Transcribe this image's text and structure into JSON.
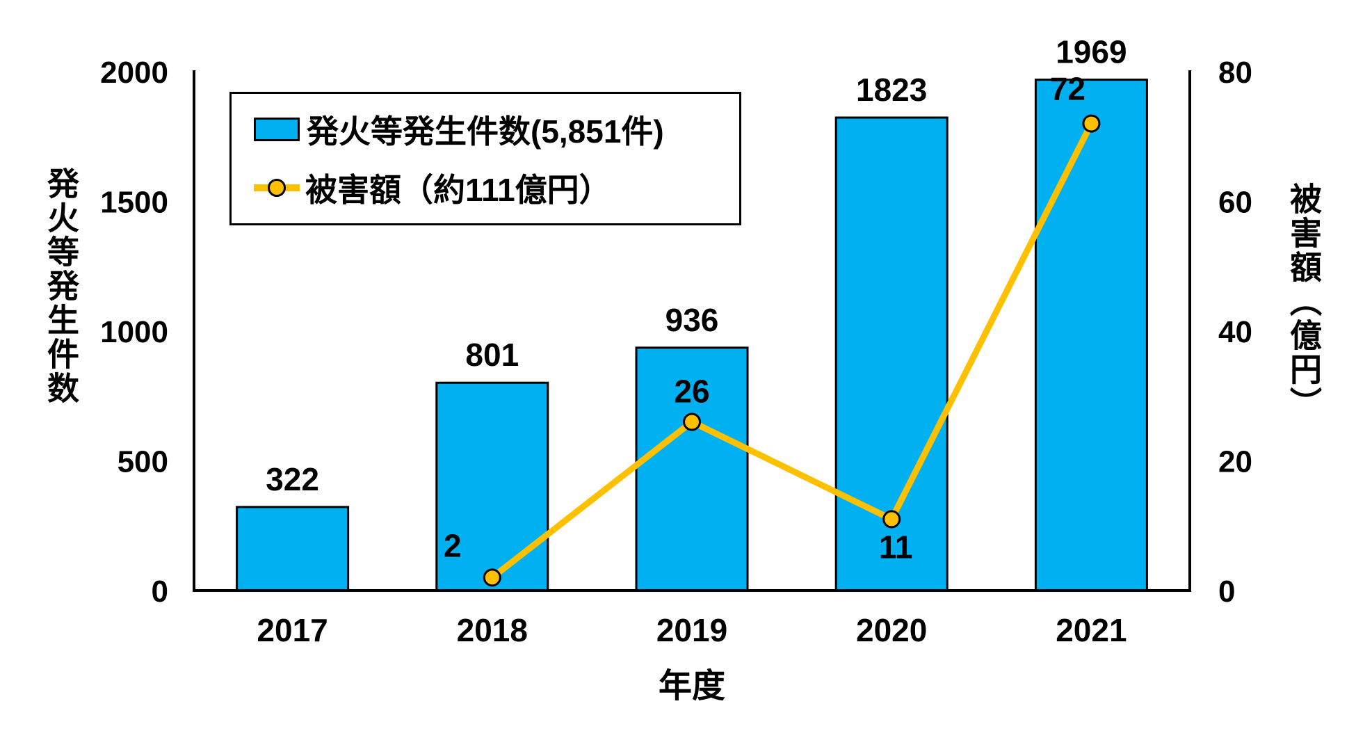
{
  "figure": {
    "background": "#ffffff"
  },
  "legend": {
    "items": [
      {
        "label": "発火等発生件数(5,851件)",
        "swatch": "bar",
        "color": "#00B0F0"
      },
      {
        "label": "被害額（約111億円）",
        "swatch": "line-marker",
        "color": "#FFC000"
      }
    ]
  },
  "chart_data": {
    "type": "combo-bar-line",
    "categories": [
      "2017",
      "2018",
      "2019",
      "2020",
      "2021"
    ],
    "series": [
      {
        "name": "発火等発生件数(5,851件)",
        "type": "bar",
        "axis": "left",
        "color": "#00B0F0",
        "outline_color": "#000000",
        "values": [
          322,
          801,
          936,
          1823,
          1969
        ],
        "data_labels": [
          "322",
          "801",
          "936",
          "1823",
          "1969"
        ]
      },
      {
        "name": "被害額（約111億円）",
        "type": "line",
        "axis": "right",
        "color": "#FFC000",
        "marker_fill": "#FFC000",
        "marker_stroke": "#000000",
        "values": [
          null,
          2,
          26,
          11,
          72
        ],
        "data_labels": [
          null,
          "2",
          "26",
          "11",
          "72"
        ],
        "label_positions": [
          null,
          "left",
          "above",
          "below",
          "above-left"
        ]
      }
    ],
    "axes": {
      "left": {
        "title": "発火等発生件数",
        "min": 0,
        "max": 2000,
        "tick_step": 500,
        "tick_labels": [
          "0",
          "500",
          "1000",
          "1500",
          "2000"
        ]
      },
      "right": {
        "title": "被害額（億円）",
        "min": 0,
        "max": 80,
        "tick_step": 20,
        "tick_labels": [
          "0",
          "20",
          "40",
          "60",
          "80"
        ]
      },
      "x": {
        "title": "年度"
      }
    },
    "grid": false,
    "legend_position": "upper-left-inside",
    "text_color": "#000000",
    "axis_color": "#000000"
  }
}
